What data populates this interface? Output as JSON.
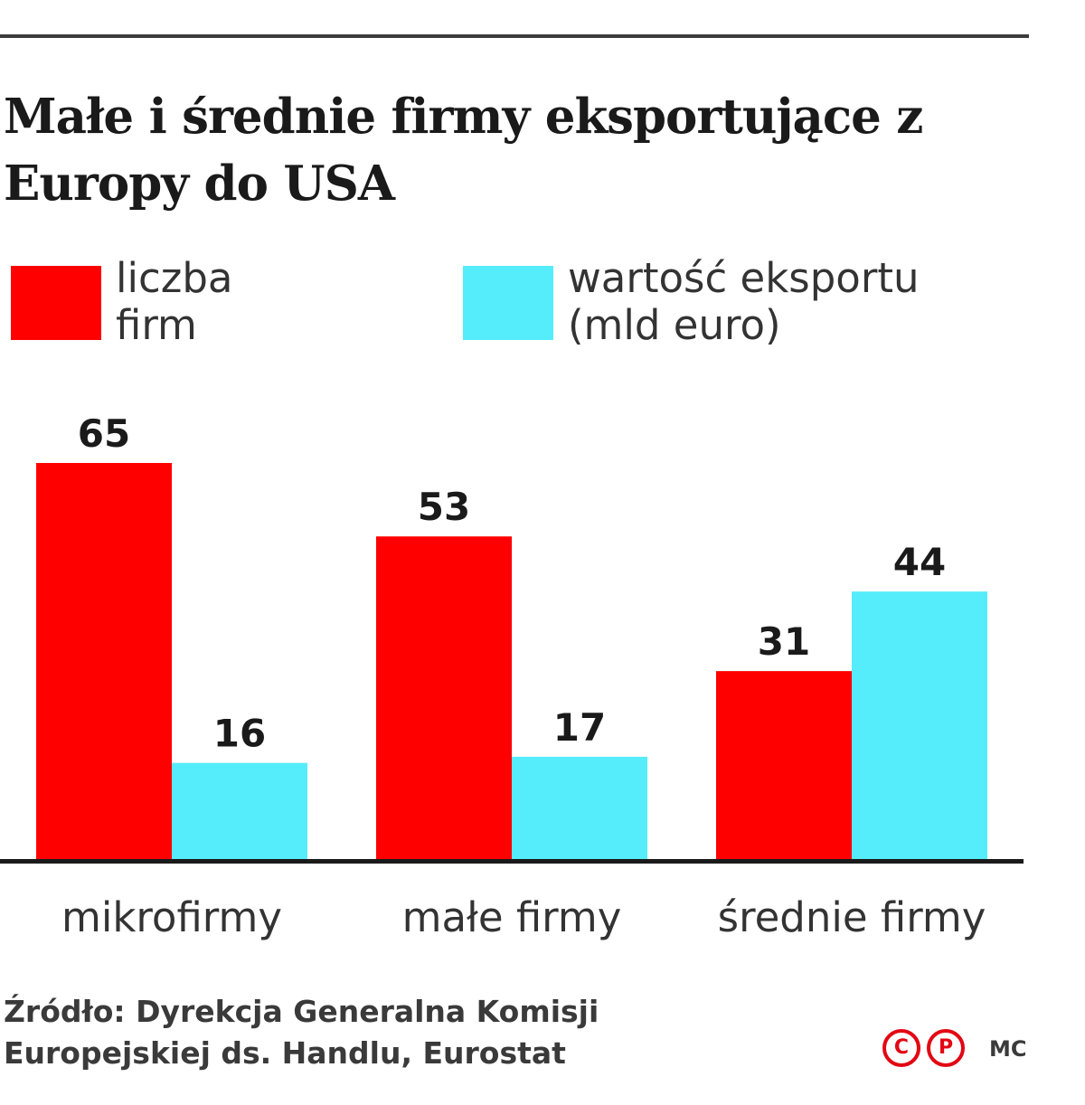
{
  "title": "Małe i średnie firmy eksportujące z Europy do USA",
  "legend": [
    {
      "label": "liczba\nfirm",
      "color": "#ff0000"
    },
    {
      "label": "wartość eksportu\n(mld euro)",
      "color": "#55ecfb"
    }
  ],
  "chart_data": {
    "type": "bar",
    "title": "Małe i średnie firmy eksportujące z Europy do USA",
    "categories": [
      "mikrofirmy",
      "małe firmy",
      "średnie firmy"
    ],
    "series": [
      {
        "name": "liczba firm",
        "values": [
          65,
          53,
          31
        ],
        "color": "#ff0000"
      },
      {
        "name": "wartość eksportu (mld euro)",
        "values": [
          16,
          17,
          44
        ],
        "color": "#55ecfb"
      }
    ],
    "ylim": [
      0,
      65
    ],
    "grid": false,
    "legend_position": "top"
  },
  "source": "Źródło: Dyrekcja Generalna Komisji\nEuropejskiej ds. Handlu, Eurostat",
  "badges": [
    "C",
    "P"
  ],
  "author": "MC"
}
